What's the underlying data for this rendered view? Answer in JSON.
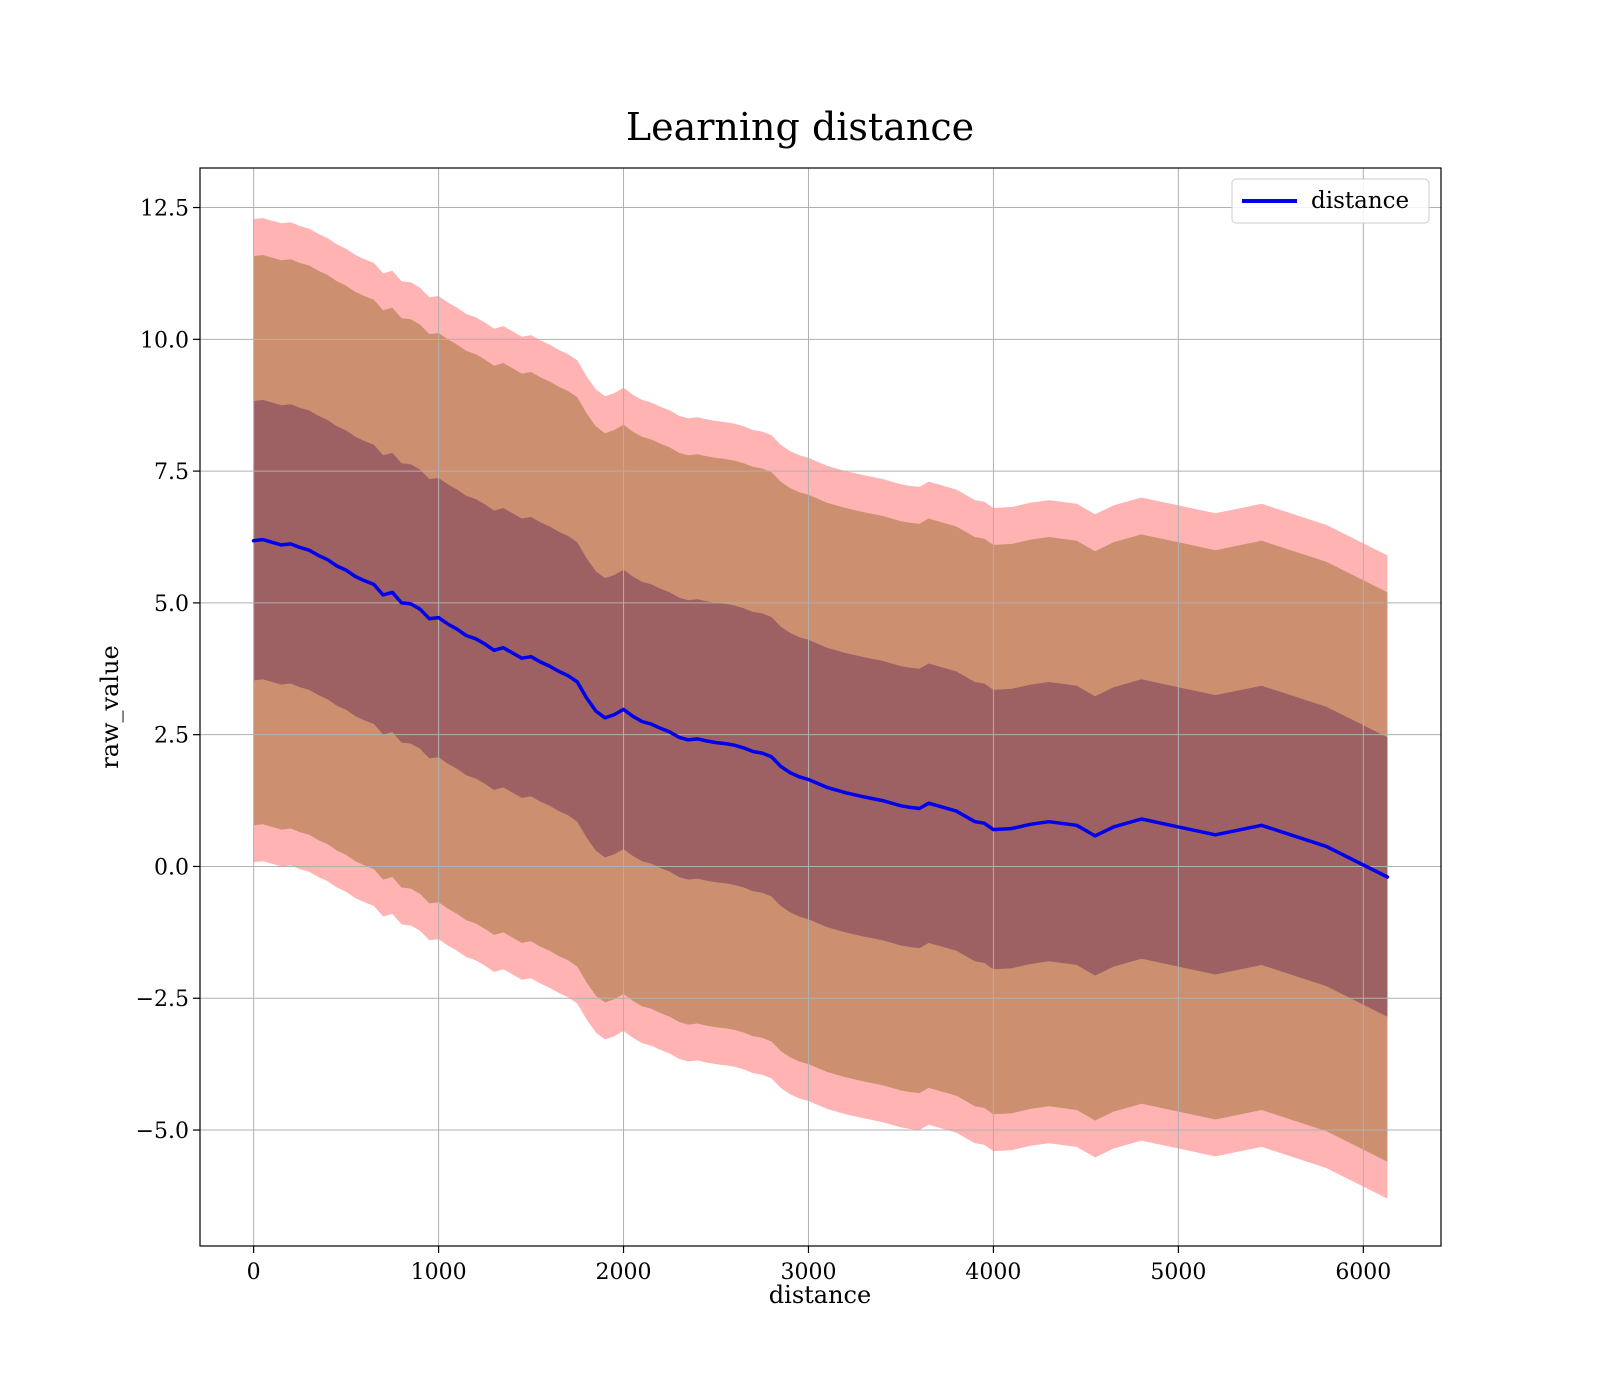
{
  "chart_data": {
    "type": "line",
    "title": "Learning distance",
    "xlabel": "distance",
    "ylabel": "raw_value",
    "xlim": [
      -290,
      6420
    ],
    "ylim": [
      -7.2,
      13.25
    ],
    "xticks": [
      0,
      1000,
      2000,
      3000,
      4000,
      5000,
      6000
    ],
    "xtick_labels": [
      "0",
      "1000",
      "2000",
      "3000",
      "4000",
      "5000",
      "6000"
    ],
    "yticks": [
      12.5,
      10.0,
      7.5,
      5.0,
      2.5,
      0.0,
      -2.5,
      -5.0
    ],
    "ytick_labels": [
      "12.5",
      "10.0",
      "7.5",
      "5.0",
      "2.5",
      "0.0",
      "−2.5",
      "−5.0"
    ],
    "grid": true,
    "legend": {
      "position": "top-right",
      "entries": [
        "distance"
      ]
    },
    "colors": {
      "line": "#0000ee",
      "band_outer": "#ff8080",
      "band_middle": "#b07e4e",
      "band_inner": "#8a4d5e"
    },
    "band_offsets": [
      6.1,
      5.4,
      2.65
    ],
    "series": [
      {
        "name": "distance",
        "x": [
          0,
          50,
          100,
          150,
          200,
          250,
          300,
          350,
          400,
          450,
          500,
          550,
          600,
          650,
          700,
          750,
          800,
          850,
          900,
          950,
          1000,
          1050,
          1100,
          1150,
          1200,
          1250,
          1300,
          1350,
          1400,
          1450,
          1500,
          1550,
          1600,
          1650,
          1700,
          1750,
          1800,
          1850,
          1900,
          1950,
          2000,
          2050,
          2100,
          2150,
          2200,
          2250,
          2300,
          2350,
          2400,
          2450,
          2500,
          2550,
          2600,
          2650,
          2700,
          2750,
          2800,
          2850,
          2900,
          2950,
          3000,
          3100,
          3200,
          3300,
          3400,
          3500,
          3550,
          3600,
          3650,
          3700,
          3800,
          3900,
          3950,
          4000,
          4100,
          4200,
          4300,
          4450,
          4550,
          4650,
          4800,
          5000,
          5200,
          5450,
          5800,
          6130
        ],
        "y": [
          6.18,
          6.2,
          6.15,
          6.1,
          6.12,
          6.05,
          6.0,
          5.9,
          5.82,
          5.7,
          5.62,
          5.5,
          5.42,
          5.35,
          5.15,
          5.2,
          5.0,
          4.98,
          4.88,
          4.7,
          4.72,
          4.6,
          4.5,
          4.38,
          4.32,
          4.22,
          4.1,
          4.15,
          4.05,
          3.95,
          3.98,
          3.88,
          3.8,
          3.7,
          3.62,
          3.5,
          3.2,
          2.95,
          2.82,
          2.88,
          2.98,
          2.85,
          2.75,
          2.7,
          2.62,
          2.55,
          2.45,
          2.4,
          2.42,
          2.38,
          2.35,
          2.33,
          2.3,
          2.25,
          2.18,
          2.15,
          2.08,
          1.9,
          1.78,
          1.7,
          1.65,
          1.5,
          1.4,
          1.32,
          1.25,
          1.15,
          1.12,
          1.1,
          1.2,
          1.15,
          1.05,
          0.85,
          0.82,
          0.7,
          0.72,
          0.8,
          0.85,
          0.78,
          0.58,
          0.75,
          0.9,
          0.75,
          0.6,
          0.78,
          0.38,
          -0.2
        ]
      }
    ]
  }
}
